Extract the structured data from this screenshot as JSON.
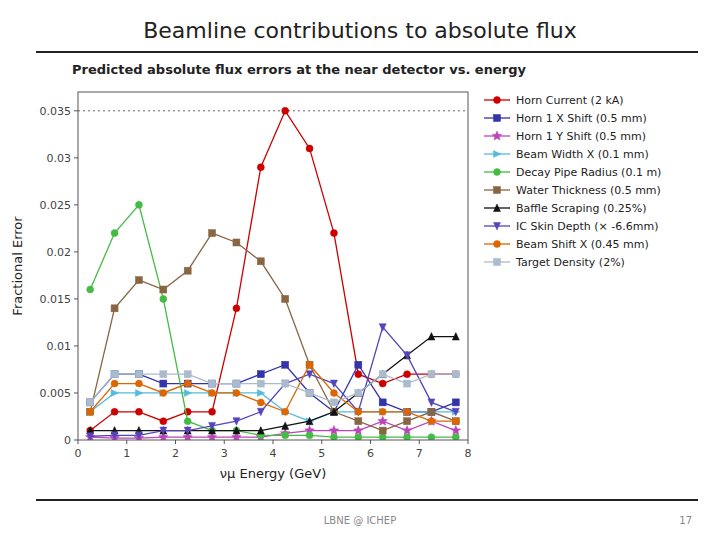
{
  "chart_data": {
    "type": "line",
    "title": "Beamline contributions to absolute flux",
    "subtitle": "Predicted absolute flux errors at the near detector vs. energy",
    "xlabel": "νμ Energy (GeV)",
    "ylabel": "Fractional Error",
    "annotations": [
      "LBNE @ ICHEP",
      "17"
    ],
    "xlim": [
      0,
      8
    ],
    "ylim": [
      0,
      0.037
    ],
    "xticks": [
      0,
      1,
      2,
      3,
      4,
      5,
      6,
      7,
      8
    ],
    "yticks": [
      0,
      0.005,
      0.01,
      0.015,
      0.02,
      0.025,
      0.03,
      0.035
    ],
    "grid": false,
    "legend": "right",
    "hline": {
      "value": 0.035,
      "line_style": "dotted"
    },
    "x": [
      0.25,
      0.75,
      1.25,
      1.75,
      2.25,
      2.75,
      3.25,
      3.75,
      4.25,
      4.75,
      5.25,
      5.75,
      6.25,
      6.75,
      7.25,
      7.75
    ],
    "series": [
      {
        "name": "Horn Current (2 kA)",
        "color": "#cc0000",
        "marker": "circle",
        "values": [
          0.001,
          0.003,
          0.003,
          0.002,
          0.003,
          0.003,
          0.014,
          0.029,
          0.035,
          0.031,
          0.022,
          0.007,
          0.006,
          0.007,
          0.007,
          0.007
        ]
      },
      {
        "name": "Horn 1 X Shift (0.5 mm)",
        "color": "#3333aa",
        "marker": "square",
        "values": [
          0.004,
          0.007,
          0.007,
          0.006,
          0.006,
          0.006,
          0.006,
          0.007,
          0.008,
          0.005,
          0.003,
          0.008,
          0.004,
          0.003,
          0.003,
          0.004
        ]
      },
      {
        "name": "Horn 1 Y Shift (0.5 mm)",
        "color": "#bb44bb",
        "marker": "star",
        "values": [
          0.0003,
          0.0002,
          0.0002,
          0.0003,
          0.0003,
          0.0003,
          0.0003,
          0.0003,
          0.0007,
          0.001,
          0.001,
          0.001,
          0.002,
          0.001,
          0.002,
          0.001
        ]
      },
      {
        "name": "Beam Width X (0.1 mm)",
        "color": "#55bbdd",
        "marker": "triangle-right",
        "values": [
          0.003,
          0.005,
          0.005,
          0.005,
          0.005,
          0.005,
          0.005,
          0.005,
          0.003,
          0.002,
          0.003,
          0.003,
          0.003,
          0.003,
          0.003,
          0.003
        ]
      },
      {
        "name": "Decay Pipe Radius (0.1 m)",
        "color": "#44bb44",
        "marker": "circle",
        "values": [
          0.016,
          0.022,
          0.025,
          0.015,
          0.002,
          0.001,
          0.001,
          0.0005,
          0.0005,
          0.0005,
          0.0003,
          0.0003,
          0.0003,
          0.0003,
          0.0003,
          0.0003
        ]
      },
      {
        "name": "Water Thickness (0.5 mm)",
        "color": "#886644",
        "marker": "square",
        "values": [
          0.003,
          0.014,
          0.017,
          0.016,
          0.018,
          0.022,
          0.021,
          0.019,
          0.015,
          0.008,
          0.003,
          0.002,
          0.001,
          0.002,
          0.003,
          0.002
        ]
      },
      {
        "name": "Baffle Scraping (0.25%)",
        "color": "#111111",
        "marker": "triangle-up",
        "values": [
          0.001,
          0.001,
          0.001,
          0.001,
          0.001,
          0.001,
          0.001,
          0.001,
          0.0015,
          0.002,
          0.003,
          0.005,
          0.007,
          0.009,
          0.011,
          0.011
        ]
      },
      {
        "name": "IC Skin Depth (× -6.6mm)",
        "color": "#5544bb",
        "marker": "triangle-down",
        "values": [
          0.0004,
          0.0005,
          0.0005,
          0.001,
          0.001,
          0.0015,
          0.002,
          0.003,
          0.006,
          0.007,
          0.006,
          0.003,
          0.012,
          0.009,
          0.004,
          0.003
        ]
      },
      {
        "name": "Beam Shift X (0.45 mm)",
        "color": "#dd6600",
        "marker": "circle",
        "values": [
          0.003,
          0.006,
          0.006,
          0.005,
          0.006,
          0.005,
          0.005,
          0.004,
          0.003,
          0.008,
          0.005,
          0.003,
          0.003,
          0.003,
          0.002,
          0.002
        ]
      },
      {
        "name": "Target Density (2%)",
        "color": "#aabbcc",
        "marker": "square",
        "values": [
          0.004,
          0.007,
          0.007,
          0.007,
          0.007,
          0.006,
          0.006,
          0.006,
          0.006,
          0.005,
          0.004,
          0.005,
          0.007,
          0.006,
          0.007,
          0.007
        ]
      }
    ]
  }
}
